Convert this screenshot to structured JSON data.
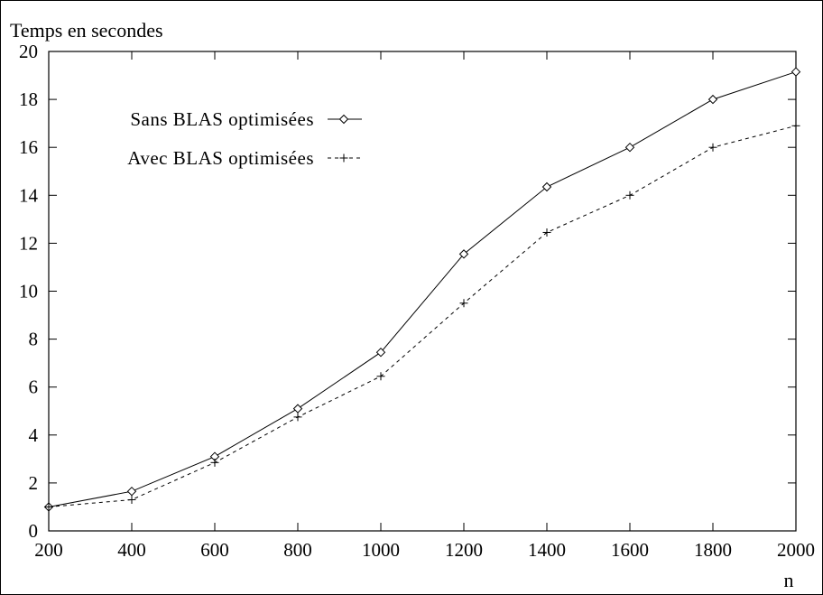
{
  "chart_data": {
    "type": "line",
    "ylabel": "Temps en secondes",
    "xlabel": "n",
    "xlim": [
      200,
      2000
    ],
    "ylim": [
      0,
      20
    ],
    "xticks": [
      200,
      400,
      600,
      800,
      1000,
      1200,
      1400,
      1600,
      1800,
      2000
    ],
    "yticks": [
      0,
      2,
      4,
      6,
      8,
      10,
      12,
      14,
      16,
      18,
      20
    ],
    "grid": false,
    "legend_position": "top-left",
    "series": [
      {
        "name": "Sans BLAS optimisées",
        "marker": "diamond",
        "line_style": "solid",
        "x": [
          200,
          400,
          600,
          800,
          1000,
          1200,
          1400,
          1600,
          1800,
          2000
        ],
        "y": [
          1.0,
          1.65,
          3.1,
          5.1,
          7.45,
          11.55,
          14.35,
          16.0,
          18.0,
          19.15
        ]
      },
      {
        "name": "Avec BLAS optimisées",
        "marker": "plus",
        "line_style": "dashed",
        "x": [
          200,
          400,
          600,
          800,
          1000,
          1200,
          1400,
          1600,
          1800,
          2000
        ],
        "y": [
          1.0,
          1.3,
          2.85,
          4.75,
          6.45,
          9.5,
          12.45,
          14.0,
          16.0,
          16.9
        ]
      }
    ]
  }
}
